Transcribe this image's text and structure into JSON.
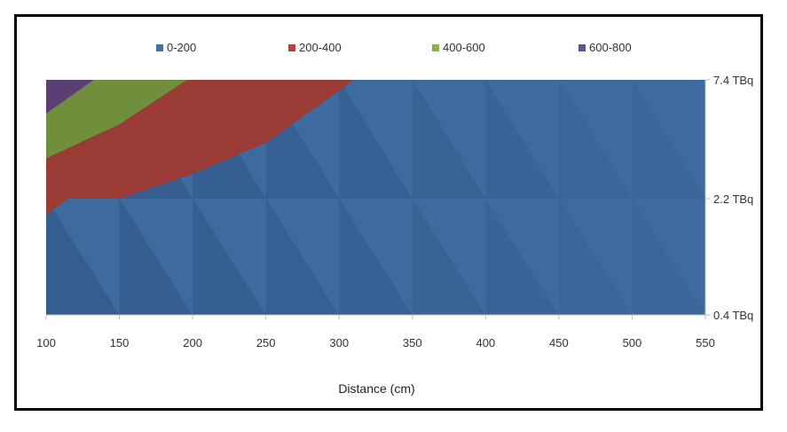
{
  "chart_data": {
    "type": "surface-contour",
    "title": "",
    "xlabel": "Distance (cm)",
    "ylabel": "",
    "x_ticks": [
      "100",
      "150",
      "200",
      "250",
      "300",
      "350",
      "400",
      "450",
      "500",
      "550"
    ],
    "x": [
      100,
      150,
      200,
      250,
      300,
      350,
      400,
      450,
      500,
      550
    ],
    "y_ticks": [
      "0.4 TBq",
      "2.2 TBq",
      "7.4 TBq"
    ],
    "y": [
      "0.4 TBq",
      "2.2 TBq",
      "7.4 TBq"
    ],
    "grid": false,
    "legend_position": "top",
    "legend": [
      {
        "label": "0-200",
        "color": "#4472a8"
      },
      {
        "label": "200-400",
        "color": "#b5403d"
      },
      {
        "label": "400-600",
        "color": "#8ab04a"
      },
      {
        "label": "600-800",
        "color": "#6b4e8c"
      }
    ],
    "bands": [
      {
        "range": "0-200",
        "color": "#3d6a9f"
      },
      {
        "range": "200-400",
        "color": "#9a3b36"
      },
      {
        "range": "400-600",
        "color": "#6f8f3c"
      },
      {
        "range": "600-800",
        "color": "#5b3f73"
      }
    ],
    "values": [
      {
        "activity": "0.4 TBq",
        "dose": [
          0,
          0,
          0,
          0,
          0,
          0,
          0,
          0,
          0,
          0
        ]
      },
      {
        "activity": "2.2 TBq",
        "dose": [
          220,
          200,
          150,
          120,
          100,
          80,
          60,
          50,
          40,
          35
        ]
      },
      {
        "activity": "7.4 TBq",
        "dose": [
          750,
          520,
          390,
          290,
          210,
          160,
          120,
          100,
          80,
          70
        ]
      }
    ]
  }
}
